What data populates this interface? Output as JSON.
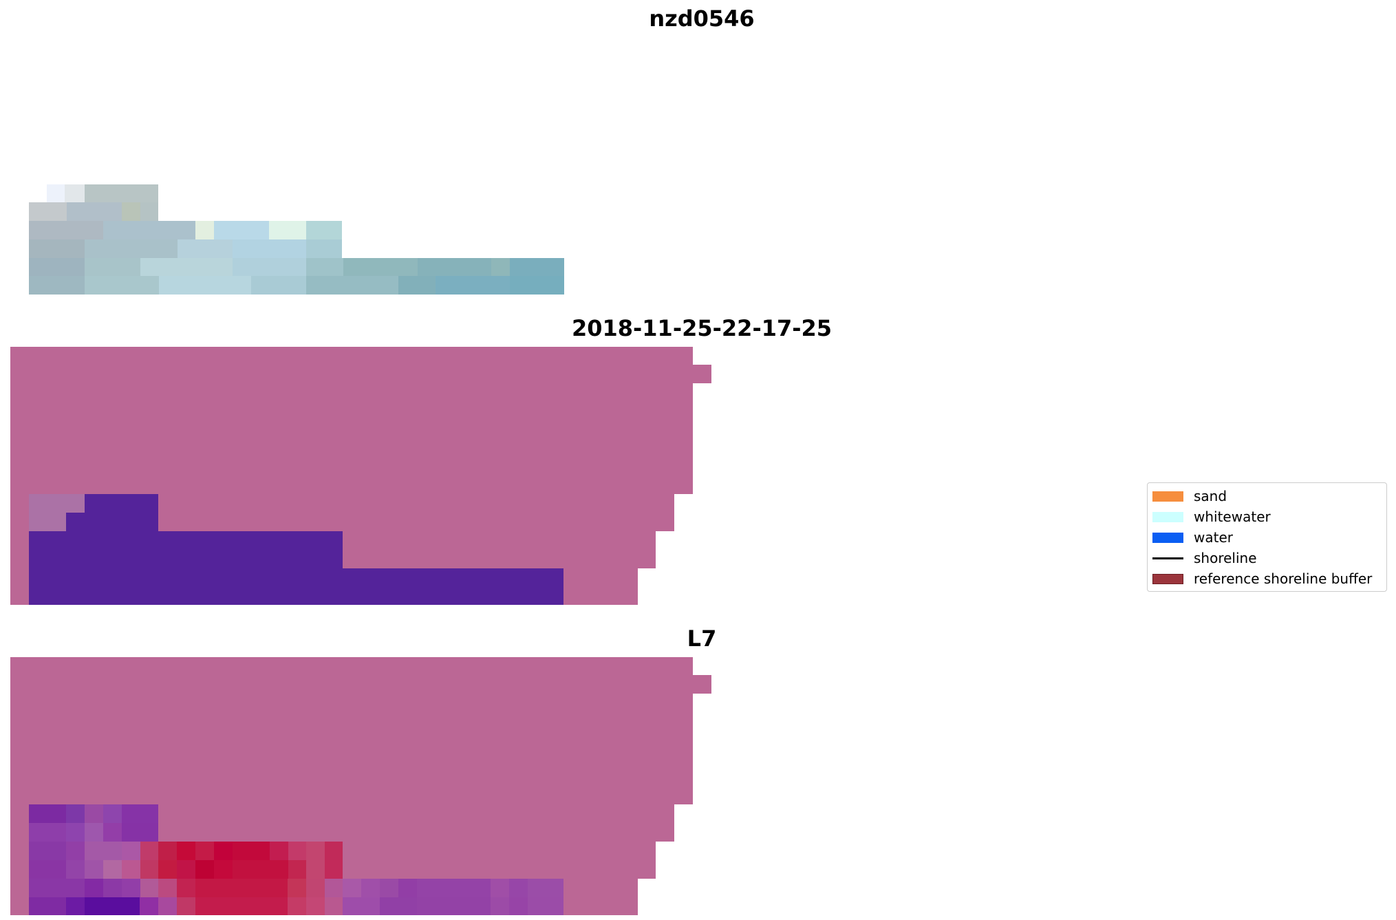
{
  "panels": {
    "top_title": "nzd0546",
    "middle_title": "2018-11-25-22-17-25",
    "bottom_title": "L7"
  },
  "legend": {
    "items": [
      {
        "label": "sand",
        "color": "#f68e3e",
        "kind": "patch"
      },
      {
        "label": "whitewater",
        "color": "#ccffff",
        "kind": "patch"
      },
      {
        "label": "water",
        "color": "#0a5ef3",
        "kind": "patch"
      },
      {
        "label": "shoreline",
        "color": "#000000",
        "kind": "line"
      },
      {
        "label": "reference shoreline buffer",
        "color": "#9b353c",
        "kind": "patch"
      }
    ]
  },
  "colors": {
    "mask_background": "#bb6795",
    "water_overlay": "#54239a",
    "sand_like_overlay": "#c00530"
  }
}
